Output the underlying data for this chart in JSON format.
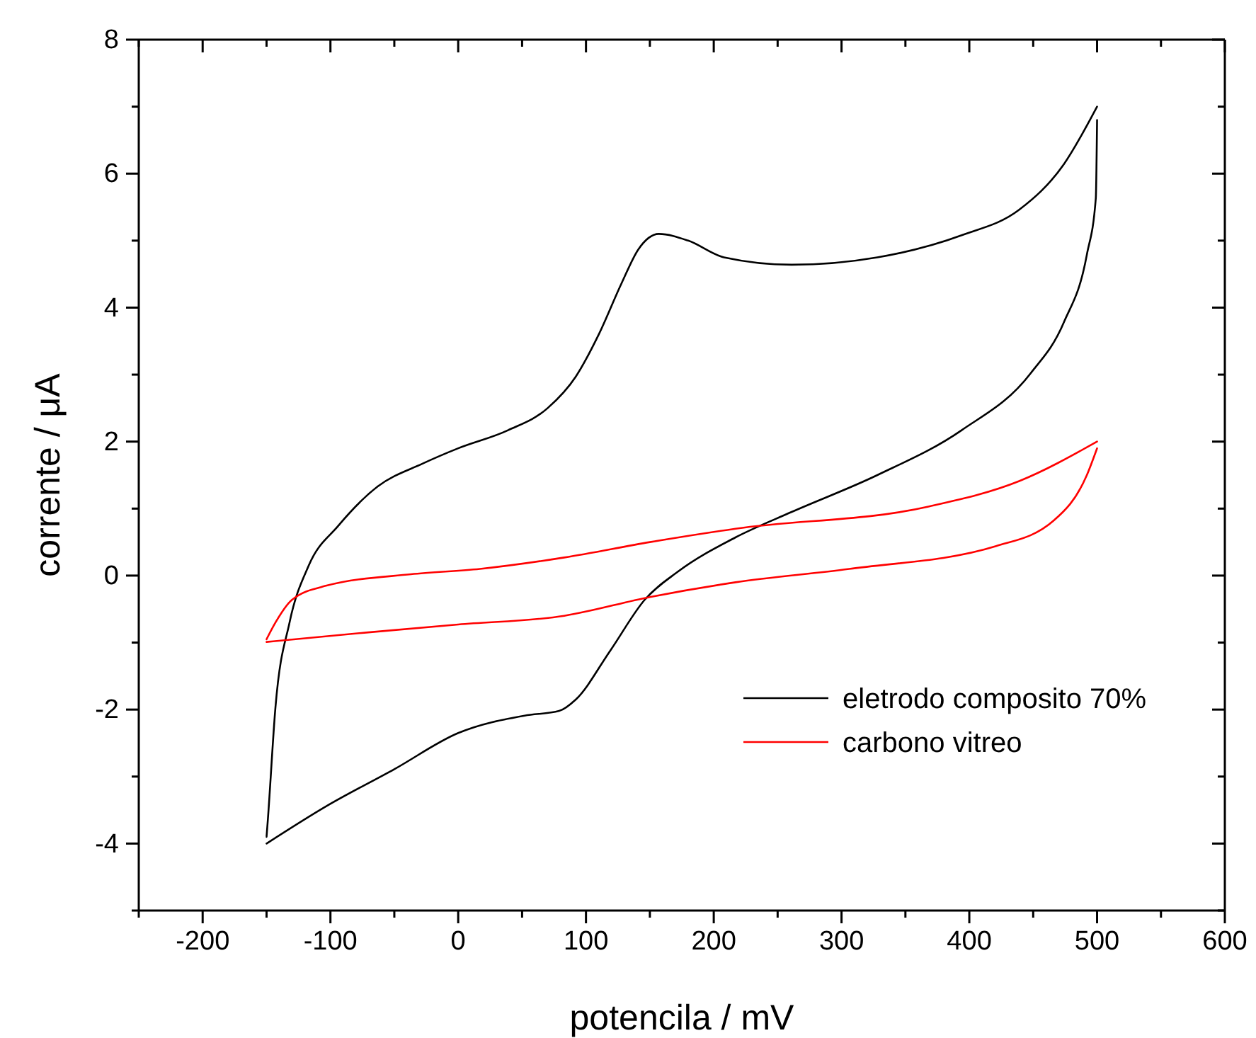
{
  "chart_data": {
    "type": "line",
    "xlabel": "potencila / mV",
    "ylabel": "corrente / μA",
    "xlim": [
      -250,
      600
    ],
    "ylim": [
      -5,
      8
    ],
    "xticks": [
      {
        "value": -250,
        "label": null
      },
      -200,
      {
        "value": -150,
        "label": null
      },
      -100,
      {
        "value": -50,
        "label": null
      },
      0,
      {
        "value": 50,
        "label": null
      },
      100,
      {
        "value": 150,
        "label": null
      },
      200,
      {
        "value": 250,
        "label": null
      },
      300,
      {
        "value": 350,
        "label": null
      },
      400,
      {
        "value": 450,
        "label": null
      },
      500,
      {
        "value": 550,
        "label": null
      },
      600
    ],
    "yticks": [
      {
        "value": -5,
        "label": null
      },
      -4,
      {
        "value": -3,
        "label": null
      },
      -2,
      {
        "value": -1,
        "label": null
      },
      0,
      {
        "value": 1,
        "label": null
      },
      2,
      {
        "value": 3,
        "label": null
      },
      4,
      {
        "value": 5,
        "label": null
      },
      6,
      {
        "value": 7,
        "label": null
      },
      8
    ],
    "grid": false,
    "legend": "bottom right",
    "line_style": "solid",
    "marker": "none",
    "series": [
      {
        "name": "eletrodo composito 70%",
        "color": "#000000",
        "x": [
          -150,
          -149,
          -143,
          -132,
          -117,
          -94,
          -63,
          -28,
          0,
          39,
          70,
          92,
          110,
          128,
          141,
          157,
          180,
          208,
          261,
          328,
          394,
          439,
          474,
          500
        ],
        "values": [
          -3.9,
          -3.65,
          -1.96,
          -0.7,
          0.15,
          0.74,
          1.33,
          1.67,
          1.9,
          2.17,
          2.5,
          2.97,
          3.6,
          4.37,
          4.87,
          5.1,
          5.0,
          4.75,
          4.64,
          4.75,
          5.08,
          5.46,
          6.14,
          7.0
        ]
      },
      {
        "color": "#000000",
        "x": [
          -150,
          -103,
          -50,
          0,
          52,
          79,
          92,
          119,
          146,
          172,
          217,
          261,
          328,
          394,
          448,
          474,
          492,
          499,
          500
        ],
        "values": [
          -4.0,
          -3.44,
          -2.89,
          -2.35,
          -2.09,
          -2.02,
          -1.85,
          -1.12,
          -0.36,
          0.06,
          0.57,
          0.95,
          1.5,
          2.17,
          3.02,
          3.78,
          4.79,
          5.63,
          6.8
        ]
      },
      {
        "name": "carbono vitreo",
        "color": "#ff0000",
        "x": [
          -150,
          -143,
          -130,
          -103,
          -37,
          17,
          83,
          150,
          217,
          368,
          439,
          500
        ],
        "values": [
          -0.95,
          -0.7,
          -0.36,
          -0.15,
          0.02,
          0.1,
          0.27,
          0.5,
          0.7,
          1.03,
          1.41,
          2.0
        ]
      },
      {
        "color": "#ff0000",
        "x": [
          -150,
          -72,
          0,
          83,
          150,
          217,
          306,
          421,
          466,
          492,
          500
        ],
        "values": [
          -0.99,
          -0.85,
          -0.73,
          -0.6,
          -0.32,
          -0.1,
          0.1,
          0.44,
          0.82,
          1.5,
          1.9
        ]
      }
    ]
  }
}
